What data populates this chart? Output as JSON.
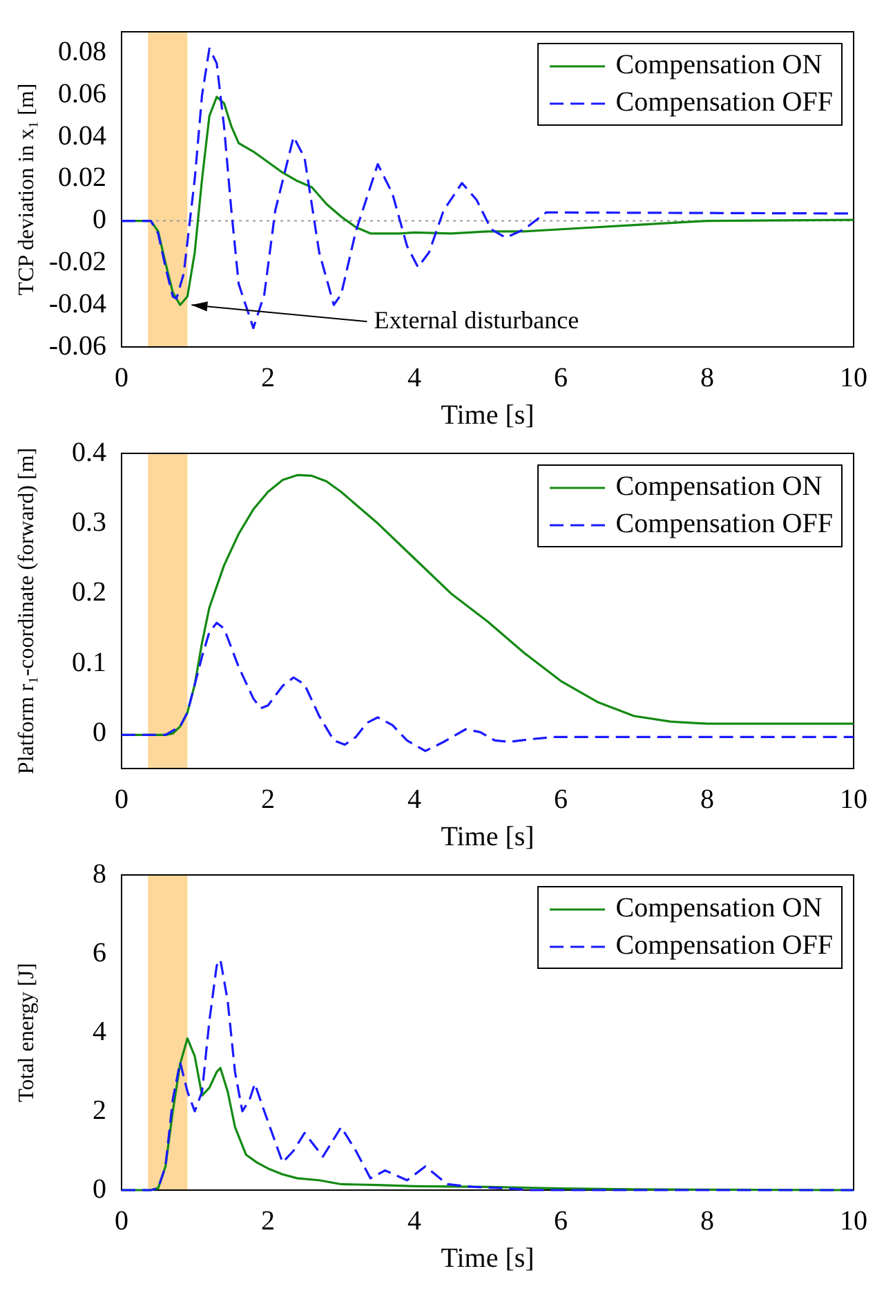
{
  "chart_data": [
    {
      "type": "line",
      "xlabel": "Time [s]",
      "ylabel": "TCP deviation in x₁ [m]",
      "xlim": [
        0,
        10
      ],
      "xticks": [
        0,
        2,
        4,
        6,
        8,
        10
      ],
      "ylim": [
        -0.06,
        0.09
      ],
      "yticks": [
        -0.06,
        -0.04,
        -0.02,
        0,
        0.02,
        0.04,
        0.06,
        0.08
      ],
      "legend": "top right",
      "grid": false,
      "bands": [
        {
          "axis": "x",
          "from": 0.36,
          "to": 0.9,
          "color": "#fdd89a"
        }
      ],
      "ref_lines": [
        {
          "axis": "y",
          "value": 0,
          "color": "#999999",
          "line_style": "dotted"
        }
      ],
      "annotations": [
        {
          "text": "External disturbance",
          "x": 0.9,
          "y": -0.04
        }
      ],
      "series": [
        {
          "name": "Compensation ON",
          "color": "#138a13",
          "line_style": "solid",
          "x": [
            0,
            0.4,
            0.5,
            0.6,
            0.7,
            0.8,
            0.9,
            1.0,
            1.1,
            1.2,
            1.3,
            1.4,
            1.5,
            1.6,
            1.8,
            2.0,
            2.2,
            2.4,
            2.6,
            2.8,
            3.0,
            3.2,
            3.4,
            3.6,
            3.8,
            4.0,
            4.5,
            5.0,
            5.5,
            6,
            7,
            8,
            10
          ],
          "values": [
            0,
            0,
            -0.005,
            -0.02,
            -0.034,
            -0.04,
            -0.036,
            -0.015,
            0.02,
            0.05,
            0.059,
            0.056,
            0.045,
            0.037,
            0.033,
            0.028,
            0.023,
            0.019,
            0.016,
            0.008,
            0.002,
            -0.003,
            -0.006,
            -0.006,
            -0.006,
            -0.0055,
            -0.006,
            -0.005,
            -0.005,
            -0.004,
            -0.002,
            0,
            0.0005
          ]
        },
        {
          "name": "Compensation OFF",
          "color": "#1a1aff",
          "line_style": "dashed",
          "x": [
            0,
            0.4,
            0.5,
            0.6,
            0.7,
            0.75,
            0.85,
            1.0,
            1.1,
            1.2,
            1.3,
            1.4,
            1.5,
            1.6,
            1.8,
            1.95,
            2.1,
            2.35,
            2.5,
            2.7,
            2.9,
            3.0,
            3.2,
            3.5,
            3.7,
            3.9,
            4.05,
            4.2,
            4.4,
            4.65,
            4.85,
            5.05,
            5.25,
            5.5,
            5.8,
            6,
            10
          ],
          "values": [
            0,
            0,
            -0.006,
            -0.022,
            -0.036,
            -0.037,
            -0.025,
            0.02,
            0.06,
            0.082,
            0.075,
            0.045,
            0.005,
            -0.03,
            -0.051,
            -0.035,
            0.005,
            0.04,
            0.03,
            -0.015,
            -0.04,
            -0.035,
            -0.005,
            0.027,
            0.013,
            -0.012,
            -0.022,
            -0.015,
            0.005,
            0.018,
            0.01,
            -0.004,
            -0.008,
            -0.004,
            0.004,
            0.004,
            0.0035
          ]
        }
      ]
    },
    {
      "type": "line",
      "xlabel": "Time [s]",
      "ylabel": "Platform r₁-coordinate (forward) [m]",
      "xlim": [
        0,
        10
      ],
      "xticks": [
        0,
        2,
        4,
        6,
        8,
        10
      ],
      "ylim": [
        -0.05,
        0.4
      ],
      "yticks": [
        0,
        0.1,
        0.2,
        0.3,
        0.4
      ],
      "legend": "top right",
      "grid": false,
      "bands": [
        {
          "axis": "x",
          "from": 0.36,
          "to": 0.9,
          "color": "#fdd89a"
        }
      ],
      "series": [
        {
          "name": "Compensation ON",
          "color": "#138a13",
          "line_style": "solid",
          "x": [
            0,
            0.6,
            0.7,
            0.8,
            0.9,
            1.0,
            1.1,
            1.2,
            1.4,
            1.6,
            1.8,
            2.0,
            2.2,
            2.4,
            2.6,
            2.8,
            3.0,
            3.5,
            4.0,
            4.5,
            5.0,
            5.5,
            6.0,
            6.5,
            7.0,
            7.5,
            8,
            10
          ],
          "values": [
            -0.002,
            -0.002,
            0,
            0.01,
            0.03,
            0.07,
            0.13,
            0.18,
            0.24,
            0.285,
            0.32,
            0.345,
            0.362,
            0.369,
            0.368,
            0.36,
            0.345,
            0.3,
            0.25,
            0.2,
            0.16,
            0.115,
            0.075,
            0.045,
            0.025,
            0.017,
            0.014,
            0.014
          ]
        },
        {
          "name": "Compensation OFF",
          "color": "#1a1aff",
          "line_style": "dashed",
          "x": [
            0,
            0.6,
            0.8,
            0.9,
            1.0,
            1.1,
            1.2,
            1.3,
            1.4,
            1.6,
            1.8,
            1.9,
            2.0,
            2.2,
            2.35,
            2.5,
            2.7,
            2.9,
            3.05,
            3.2,
            3.35,
            3.5,
            3.7,
            3.9,
            4.15,
            4.4,
            4.7,
            4.9,
            5.1,
            5.3,
            5.6,
            5.9,
            10
          ],
          "values": [
            -0.002,
            -0.002,
            0.01,
            0.03,
            0.07,
            0.11,
            0.145,
            0.158,
            0.15,
            0.095,
            0.05,
            0.036,
            0.04,
            0.068,
            0.08,
            0.07,
            0.025,
            -0.01,
            -0.016,
            -0.005,
            0.015,
            0.023,
            0.012,
            -0.01,
            -0.025,
            -0.012,
            0.006,
            0.002,
            -0.01,
            -0.012,
            -0.008,
            -0.005,
            -0.005
          ]
        }
      ]
    },
    {
      "type": "line",
      "xlabel": "Time [s]",
      "ylabel": "Total energy [J]",
      "xlim": [
        0,
        10
      ],
      "xticks": [
        0,
        2,
        4,
        6,
        8,
        10
      ],
      "ylim": [
        0,
        8
      ],
      "yticks": [
        0,
        2,
        4,
        6,
        8
      ],
      "legend": "top right",
      "grid": false,
      "bands": [
        {
          "axis": "x",
          "from": 0.36,
          "to": 0.9,
          "color": "#fdd89a"
        }
      ],
      "series": [
        {
          "name": "Compensation ON",
          "color": "#138a13",
          "line_style": "solid",
          "x": [
            0,
            0.4,
            0.5,
            0.6,
            0.7,
            0.8,
            0.9,
            1.0,
            1.1,
            1.2,
            1.3,
            1.35,
            1.45,
            1.55,
            1.7,
            1.85,
            2.0,
            2.2,
            2.4,
            2.7,
            3.0,
            3.5,
            4,
            5,
            6,
            7,
            8,
            10
          ],
          "values": [
            0,
            0,
            0.05,
            0.6,
            2.0,
            3.2,
            3.85,
            3.4,
            2.4,
            2.6,
            3.0,
            3.1,
            2.5,
            1.6,
            0.9,
            0.7,
            0.55,
            0.4,
            0.3,
            0.25,
            0.15,
            0.13,
            0.1,
            0.08,
            0.04,
            0.02,
            0.01,
            0
          ]
        },
        {
          "name": "Compensation OFF",
          "color": "#1a1aff",
          "line_style": "dashed",
          "x": [
            0,
            0.4,
            0.5,
            0.6,
            0.7,
            0.8,
            0.9,
            1.0,
            1.1,
            1.2,
            1.3,
            1.35,
            1.45,
            1.55,
            1.65,
            1.75,
            1.82,
            1.95,
            2.2,
            2.35,
            2.5,
            2.75,
            3.0,
            3.2,
            3.4,
            3.6,
            3.9,
            4.15,
            4.45,
            4.8,
            5.2,
            5.6,
            10
          ],
          "values": [
            0,
            0,
            0.05,
            0.6,
            2.3,
            3.25,
            2.5,
            2.0,
            2.5,
            4.3,
            5.7,
            5.85,
            4.8,
            3.0,
            2.0,
            2.3,
            2.7,
            2.0,
            0.7,
            1.0,
            1.45,
            0.85,
            1.6,
            1.0,
            0.3,
            0.5,
            0.25,
            0.6,
            0.15,
            0.08,
            0.05,
            0,
            0
          ]
        }
      ]
    }
  ]
}
